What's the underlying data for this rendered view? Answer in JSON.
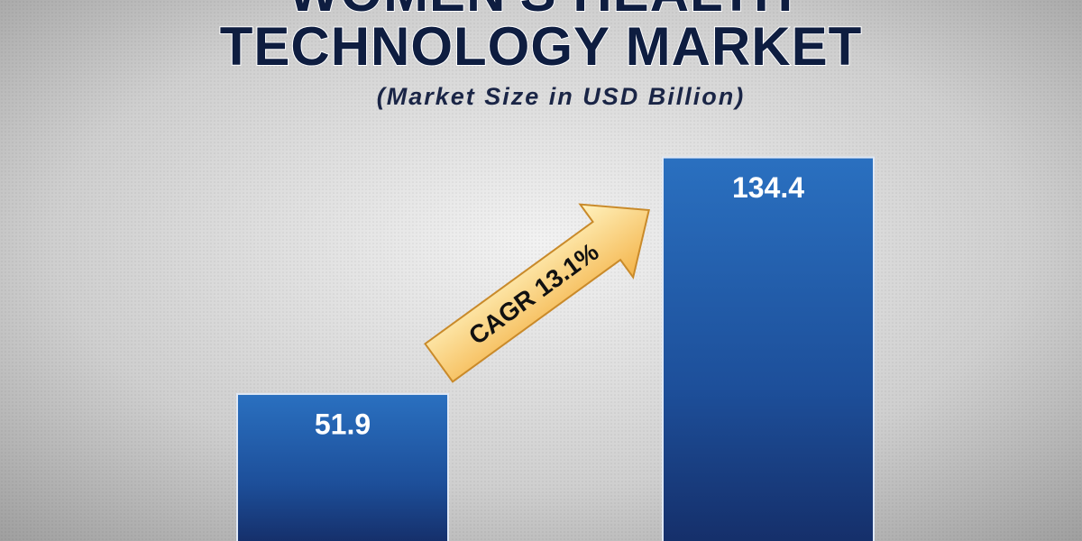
{
  "chart_data": {
    "type": "bar",
    "title": [
      "WOMEN'S HEALTH",
      "TECHNOLOGY MARKET"
    ],
    "subtitle": "(Market Size in USD Billion)",
    "categories": [
      null,
      null
    ],
    "values": [
      51.9,
      134.4
    ],
    "color": "#1f5fae",
    "annotation": "CAGR 13.1%"
  }
}
